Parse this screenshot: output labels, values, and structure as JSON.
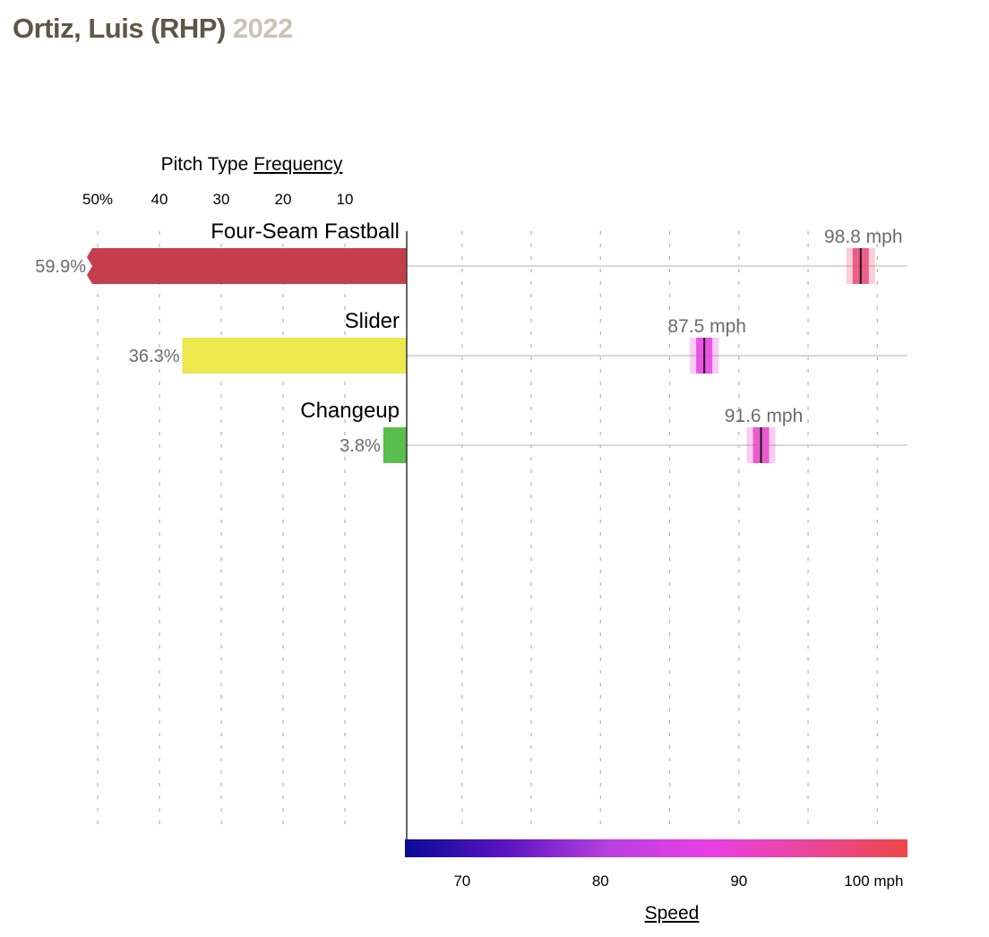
{
  "header": {
    "pitcher": "Ortiz, Luis (RHP)",
    "season": "2022"
  },
  "chart_data": {
    "type": "bar",
    "frequency_axis": {
      "title_prefix": "Pitch Type ",
      "title_link": "Frequency",
      "ticks": [
        "50%",
        "40",
        "30",
        "20",
        "10"
      ],
      "tick_values": [
        50,
        40,
        30,
        20,
        10
      ],
      "range": [
        0,
        50
      ]
    },
    "speed_axis": {
      "title": "Speed",
      "ticks": [
        "70",
        "80",
        "90",
        "100 mph"
      ],
      "tick_values": [
        70,
        80,
        90,
        100
      ],
      "range": [
        66,
        102
      ],
      "grid_values": [
        70,
        75,
        80,
        85,
        90,
        95,
        100
      ],
      "colorscale": [
        "#0a0a96",
        "#5a14c0",
        "#b63fe0",
        "#ea3ee6",
        "#e9469c",
        "#ee4747"
      ]
    },
    "pitches": [
      {
        "name": "Four-Seam Fastball",
        "frequency": 59.9,
        "frequency_label": "59.9%",
        "speed": 98.8,
        "speed_label": "98.8 mph",
        "color": "#c43e4e",
        "speed_color": "#ea4a7a"
      },
      {
        "name": "Slider",
        "frequency": 36.3,
        "frequency_label": "36.3%",
        "speed": 87.5,
        "speed_label": "87.5 mph",
        "color": "#ede84e",
        "speed_color": "#e83fe0"
      },
      {
        "name": "Changeup",
        "frequency": 3.8,
        "frequency_label": "3.8%",
        "speed": 91.6,
        "speed_label": "91.6 mph",
        "color": "#5bbd4d",
        "speed_color": "#e848c8"
      }
    ]
  }
}
